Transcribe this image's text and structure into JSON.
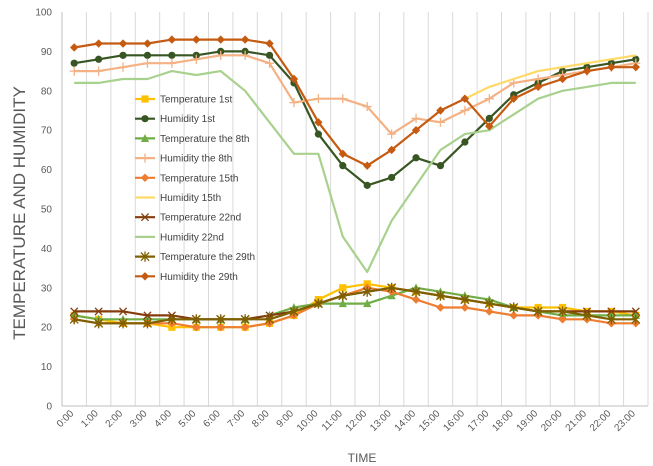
{
  "chart_data": {
    "type": "line",
    "title": "",
    "xlabel": "TIME",
    "ylabel": "TEMPERATURE AND HUMIDITY",
    "ylim": [
      0,
      100
    ],
    "yticks": [
      0,
      10,
      20,
      30,
      40,
      50,
      60,
      70,
      80,
      90,
      100
    ],
    "grid": "vertical",
    "legend_position": "inside-left",
    "categories": [
      "0:00",
      "1:00",
      "2:00",
      "3:00",
      "4:00",
      "5:00",
      "6:00",
      "7:00",
      "8:00",
      "9:00",
      "10:00",
      "11:00",
      "12:00",
      "13:00",
      "14:00",
      "15:00",
      "16:00",
      "17:00",
      "18:00",
      "19:00",
      "20:00",
      "21:00",
      "22:00",
      "23:00"
    ],
    "series": [
      {
        "name": "Temperature 1st",
        "color": "#FFC000",
        "marker": "square",
        "values": [
          23,
          22,
          21,
          21,
          20,
          20,
          20,
          20,
          21,
          23,
          27,
          30,
          31,
          30,
          29,
          28,
          27,
          26,
          25,
          25,
          25,
          24,
          24,
          23
        ]
      },
      {
        "name": "Humidity 1st",
        "color": "#375623",
        "marker": "circle",
        "values": [
          87,
          88,
          89,
          89,
          89,
          89,
          90,
          90,
          89,
          82,
          69,
          61,
          56,
          58,
          63,
          61,
          67,
          73,
          79,
          82,
          85,
          86,
          87,
          88
        ]
      },
      {
        "name": "Temperature the 8th",
        "color": "#70AD47",
        "marker": "triangle",
        "values": [
          23,
          22,
          22,
          22,
          22,
          22,
          22,
          22,
          23,
          25,
          26,
          26,
          26,
          28,
          30,
          29,
          28,
          27,
          25,
          24,
          23,
          23,
          23,
          23
        ]
      },
      {
        "name": "Humidity the 8th",
        "color": "#F4B183",
        "marker": "plus",
        "values": [
          85,
          85,
          86,
          87,
          87,
          88,
          89,
          89,
          87,
          77,
          78,
          78,
          76,
          69,
          73,
          72,
          75,
          78,
          82,
          83,
          84,
          85,
          86,
          87
        ]
      },
      {
        "name": "Temperature 15th",
        "color": "#ED7D31",
        "marker": "diamond",
        "values": [
          22,
          21,
          21,
          21,
          21,
          20,
          20,
          20,
          21,
          23,
          26,
          28,
          30,
          29,
          27,
          25,
          25,
          24,
          23,
          23,
          22,
          22,
          21,
          21
        ]
      },
      {
        "name": "Humidity 15th",
        "color": "#FFD966",
        "marker": "none",
        "values": [
          null,
          null,
          null,
          null,
          null,
          null,
          null,
          null,
          null,
          null,
          null,
          null,
          null,
          null,
          null,
          null,
          78,
          81,
          83,
          85,
          86,
          87,
          88,
          89
        ]
      },
      {
        "name": "Temperature 22nd",
        "color": "#843C0C",
        "marker": "x",
        "values": [
          24,
          24,
          24,
          23,
          23,
          22,
          22,
          22,
          23,
          24,
          26,
          28,
          29,
          30,
          29,
          28,
          27,
          26,
          25,
          24,
          24,
          24,
          24,
          24
        ]
      },
      {
        "name": "Humidity 22nd",
        "color": "#A9D18E",
        "marker": "none",
        "values": [
          82,
          82,
          83,
          83,
          85,
          84,
          85,
          80,
          72,
          64,
          64,
          43,
          34,
          47,
          56,
          65,
          69,
          70,
          74,
          78,
          80,
          81,
          82,
          82
        ]
      },
      {
        "name": "Temperature the 29th",
        "color": "#7F6000",
        "marker": "star",
        "values": [
          22,
          21,
          21,
          21,
          22,
          22,
          22,
          22,
          22,
          24,
          26,
          28,
          29,
          30,
          29,
          28,
          27,
          26,
          25,
          24,
          24,
          23,
          22,
          22
        ]
      },
      {
        "name": "Humidity the 29th",
        "color": "#C55A11",
        "marker": "diamond",
        "values": [
          91,
          92,
          92,
          92,
          93,
          93,
          93,
          93,
          92,
          83,
          72,
          64,
          61,
          65,
          70,
          75,
          78,
          71,
          78,
          81,
          83,
          85,
          86,
          86
        ]
      }
    ]
  }
}
